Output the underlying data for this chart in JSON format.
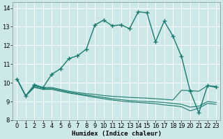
{
  "xlabel": "Humidex (Indice chaleur)",
  "xlim": [
    -0.5,
    23.5
  ],
  "ylim": [
    8.0,
    14.3
  ],
  "yticks": [
    8,
    9,
    10,
    11,
    12,
    13,
    14
  ],
  "xticks": [
    0,
    1,
    2,
    3,
    4,
    5,
    6,
    7,
    8,
    9,
    10,
    11,
    12,
    13,
    14,
    15,
    16,
    17,
    18,
    19,
    20,
    21,
    22,
    23
  ],
  "bg_color": "#cce8e8",
  "grid_color": "#b0d8d8",
  "line_color": "#1a7a6e",
  "main_curve": {
    "x": [
      0,
      1,
      2,
      3,
      4,
      5,
      6,
      7,
      8,
      9,
      10,
      11,
      12,
      13,
      14,
      15,
      16,
      17,
      18,
      19,
      20,
      21,
      22,
      23
    ],
    "y": [
      10.2,
      9.3,
      9.9,
      9.75,
      10.45,
      10.75,
      11.3,
      11.45,
      11.8,
      13.1,
      13.35,
      13.05,
      13.1,
      12.9,
      13.8,
      13.75,
      12.2,
      13.3,
      12.5,
      11.4,
      9.55,
      8.4,
      9.85,
      9.8
    ]
  },
  "flat_lines": [
    {
      "x": [
        0,
        1,
        2,
        3,
        4,
        5,
        6,
        7,
        8,
        9,
        10,
        11,
        12,
        13,
        14,
        15,
        16,
        17,
        18,
        19,
        20,
        21,
        22,
        23
      ],
      "y": [
        10.2,
        9.3,
        9.85,
        9.75,
        9.75,
        9.65,
        9.55,
        9.48,
        9.42,
        9.38,
        9.32,
        9.28,
        9.25,
        9.22,
        9.2,
        9.18,
        9.15,
        9.12,
        9.08,
        9.6,
        9.58,
        9.55,
        9.85,
        9.75
      ]
    },
    {
      "x": [
        0,
        1,
        2,
        3,
        4,
        5,
        6,
        7,
        8,
        9,
        10,
        11,
        12,
        13,
        14,
        15,
        16,
        17,
        18,
        19,
        20,
        21,
        22,
        23
      ],
      "y": [
        10.2,
        9.3,
        9.8,
        9.7,
        9.7,
        9.6,
        9.5,
        9.42,
        9.35,
        9.28,
        9.22,
        9.15,
        9.1,
        9.05,
        9.02,
        9.0,
        8.98,
        8.95,
        8.9,
        8.85,
        8.7,
        8.75,
        9.0,
        8.95
      ]
    },
    {
      "x": [
        0,
        1,
        2,
        3,
        4,
        5,
        6,
        7,
        8,
        9,
        10,
        11,
        12,
        13,
        14,
        15,
        16,
        17,
        18,
        19,
        20,
        21,
        22,
        23
      ],
      "y": [
        10.2,
        9.3,
        9.75,
        9.65,
        9.65,
        9.55,
        9.45,
        9.38,
        9.3,
        9.22,
        9.15,
        9.08,
        9.02,
        8.98,
        8.95,
        8.92,
        8.88,
        8.82,
        8.78,
        8.72,
        8.5,
        8.65,
        8.9,
        8.85
      ]
    }
  ]
}
